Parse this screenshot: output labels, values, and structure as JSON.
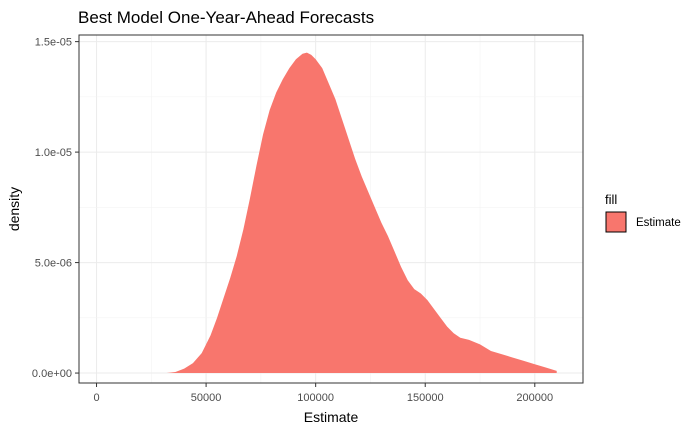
{
  "chart_data": {
    "type": "area",
    "title": "Best Model One-Year-Ahead Forecasts",
    "xlabel": "Estimate",
    "ylabel": "density",
    "xlim": [
      -8000,
      222000
    ],
    "ylim": [
      -4.5e-07,
      1.53e-05
    ],
    "x_ticks": [
      0,
      50000,
      100000,
      150000,
      200000
    ],
    "x_tick_labels": [
      "0",
      "50000",
      "100000",
      "150000",
      "200000"
    ],
    "y_ticks": [
      0,
      5e-06,
      1e-05,
      1.5e-05
    ],
    "y_tick_labels": [
      "0.0e+00",
      "5.0e-06",
      "1.0e-05",
      "1.5e-05"
    ],
    "grid": true,
    "legend_position": "right",
    "legend": {
      "title": "fill",
      "entries": [
        {
          "label": "Estimate",
          "color": "#F8766D"
        }
      ]
    },
    "fill_color": "#F8766D",
    "series": [
      {
        "name": "Estimate",
        "x": [
          32000,
          36000,
          40000,
          44000,
          48000,
          52000,
          55000,
          58000,
          61000,
          64000,
          67000,
          70000,
          73000,
          76000,
          79000,
          82000,
          85000,
          88000,
          91000,
          94000,
          96000,
          98000,
          100000,
          103000,
          106000,
          109000,
          112000,
          115000,
          118000,
          121000,
          124000,
          127000,
          130000,
          133000,
          136000,
          139000,
          142000,
          145000,
          148000,
          151000,
          154000,
          157000,
          160000,
          163000,
          166000,
          170000,
          175000,
          180000,
          185000,
          190000,
          195000,
          200000,
          205000,
          210000
        ],
        "y": [
          0,
          5e-08,
          2e-07,
          4.5e-07,
          9e-07,
          1.7e-06,
          2.5e-06,
          3.4e-06,
          4.3e-06,
          5.3e-06,
          6.5e-06,
          7.9e-06,
          9.4e-06,
          1.08e-05,
          1.19e-05,
          1.27e-05,
          1.33e-05,
          1.38e-05,
          1.42e-05,
          1.445e-05,
          1.45e-05,
          1.44e-05,
          1.42e-05,
          1.38e-05,
          1.31e-05,
          1.24e-05,
          1.15e-05,
          1.06e-05,
          9.7e-06,
          8.9e-06,
          8.2e-06,
          7.5e-06,
          6.8e-06,
          6.2e-06,
          5.5e-06,
          4.8e-06,
          4.2e-06,
          3.8e-06,
          3.6e-06,
          3.3e-06,
          2.9e-06,
          2.5e-06,
          2.1e-06,
          1.8e-06,
          1.6e-06,
          1.5e-06,
          1.3e-06,
          1e-06,
          8.5e-07,
          7e-07,
          5.5e-07,
          4e-07,
          2.5e-07,
          1e-07
        ]
      }
    ]
  }
}
